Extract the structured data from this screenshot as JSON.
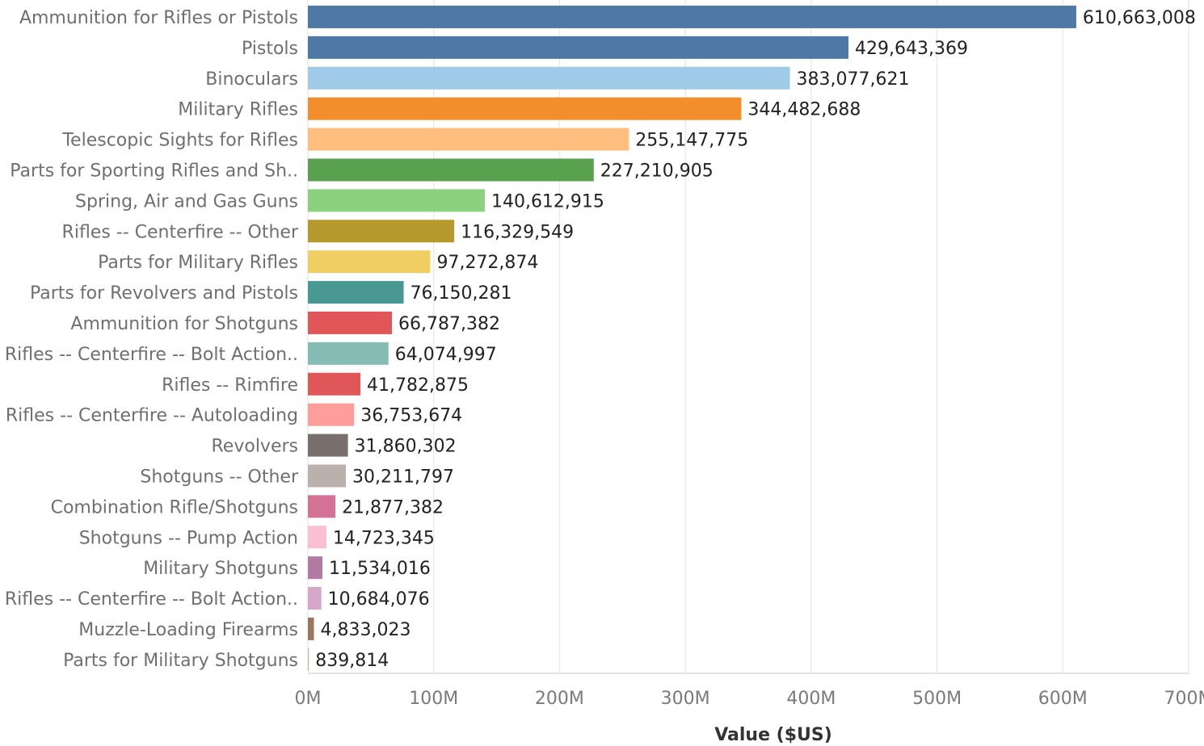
{
  "chart_data": {
    "type": "bar",
    "orientation": "horizontal",
    "title": "",
    "xlabel": "Value ($US)",
    "ylabel": "",
    "xlim": [
      0,
      700000000
    ],
    "grid": true,
    "x_ticks": [
      0,
      100000000,
      200000000,
      300000000,
      400000000,
      500000000,
      600000000,
      700000000
    ],
    "x_tick_labels": [
      "0M",
      "100M",
      "200M",
      "300M",
      "400M",
      "500M",
      "600M",
      "700M"
    ],
    "categories": [
      "Ammunition for Rifles or Pistols",
      "Pistols",
      "Binoculars",
      "Military Rifles",
      "Telescopic Sights for Rifles",
      "Parts for Sporting Rifles and Sh..",
      "Spring, Air and Gas Guns",
      "Rifles -- Centerfire -- Other",
      "Parts for Military Rifles",
      "Parts for Revolvers and Pistols",
      "Ammunition for Shotguns",
      "Rifles -- Centerfire -- Bolt Action..",
      "Rifles -- Rimfire",
      "Rifles -- Centerfire -- Autoloading",
      "Revolvers",
      "Shotguns -- Other",
      "Combination Rifle/Shotguns",
      "Shotguns -- Pump Action",
      "Military Shotguns",
      "Rifles -- Centerfire -- Bolt Action..",
      "Muzzle-Loading Firearms",
      "Parts for Military Shotguns"
    ],
    "values": [
      610663008,
      429643369,
      383077621,
      344482688,
      255147775,
      227210905,
      140612915,
      116329549,
      97272874,
      76150281,
      66787382,
      64074997,
      41782875,
      36753674,
      31860302,
      30211797,
      21877382,
      14723345,
      11534016,
      10684076,
      4833023,
      839814
    ],
    "value_labels": [
      "610,663,008",
      "429,643,369",
      "383,077,621",
      "344,482,688",
      "255,147,775",
      "227,210,905",
      "140,612,915",
      "116,329,549",
      "97,272,874",
      "76,150,281",
      "66,787,382",
      "64,074,997",
      "41,782,875",
      "36,753,674",
      "31,860,302",
      "30,211,797",
      "21,877,382",
      "14,723,345",
      "11,534,016",
      "10,684,076",
      "4,833,023",
      "839,814"
    ],
    "colors": [
      "#4e79a7",
      "#4e79a7",
      "#a0cbe8",
      "#f28e2b",
      "#ffbe7d",
      "#59a14f",
      "#8cd17d",
      "#b6992d",
      "#f1ce63",
      "#499894",
      "#e15759",
      "#86bcb6",
      "#e15759",
      "#ff9d9a",
      "#79706e",
      "#bab0ac",
      "#d37295",
      "#fabfd2",
      "#b07aa1",
      "#d4a6c8",
      "#9d7660",
      "#d7b5a6"
    ]
  }
}
